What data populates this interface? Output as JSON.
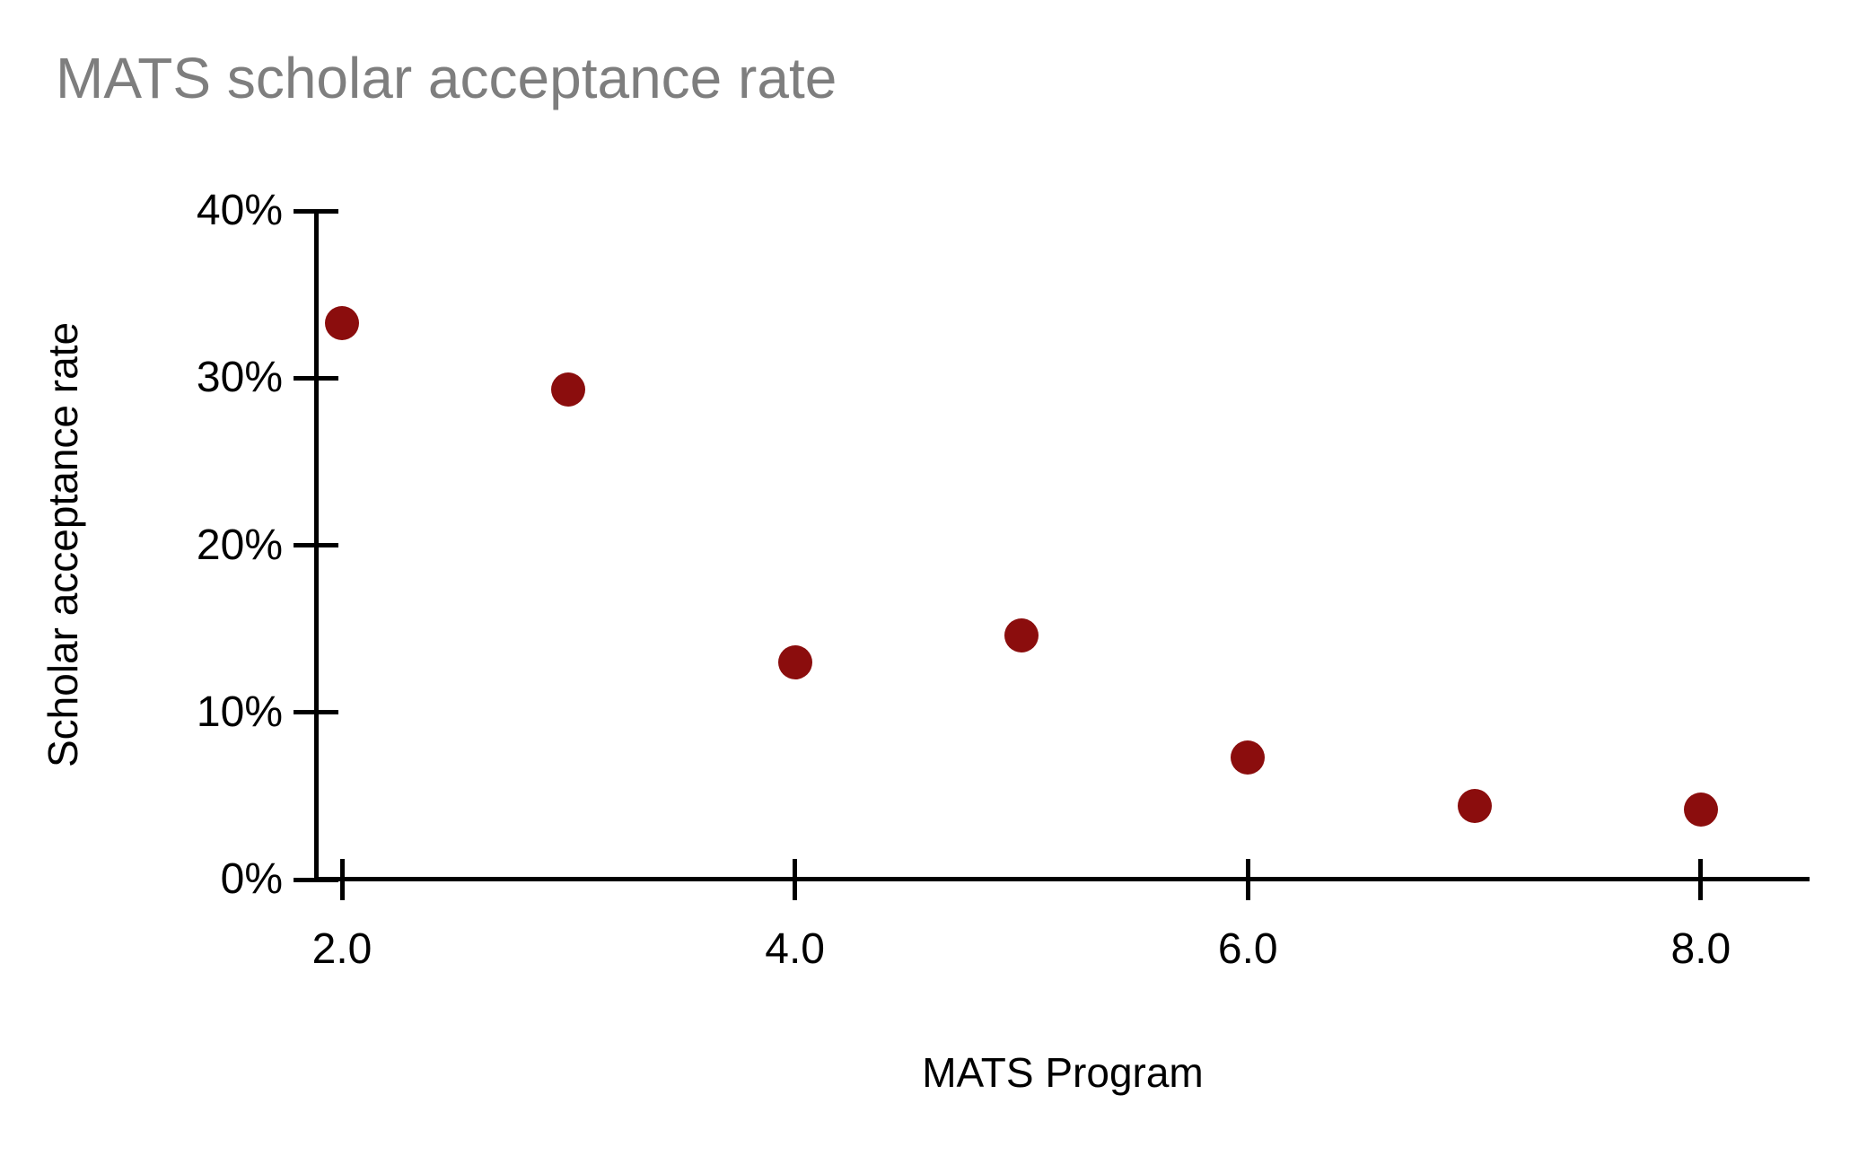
{
  "page": {
    "background_color": "#ffffff"
  },
  "chart_data": {
    "type": "scatter",
    "title": "MATS scholar acceptance rate",
    "xlabel": "MATS Program",
    "ylabel": "Scholar acceptance rate",
    "x": [
      2.0,
      3.0,
      4.0,
      5.0,
      6.0,
      7.0,
      8.0
    ],
    "y_percent": [
      33.3,
      29.3,
      13.0,
      14.6,
      7.3,
      4.4,
      4.2
    ],
    "series": [
      {
        "name": "Scholar acceptance rate",
        "x": [
          2.0,
          3.0,
          4.0,
          5.0,
          6.0,
          7.0,
          8.0
        ],
        "y": [
          33.3,
          29.3,
          13.0,
          14.6,
          7.3,
          4.4,
          4.2
        ]
      }
    ],
    "x_tick_labels": [
      "2.0",
      "4.0",
      "6.0",
      "8.0"
    ],
    "x_tick_values": [
      2.0,
      4.0,
      6.0,
      8.0
    ],
    "y_tick_labels": [
      "0%",
      "10%",
      "20%",
      "30%",
      "40%"
    ],
    "y_tick_values": [
      0,
      10,
      20,
      30,
      40
    ],
    "xlim": [
      1.885,
      8.48
    ],
    "ylim": [
      0,
      40
    ],
    "grid": false,
    "legend": false,
    "marker_color": "#8B0D0D",
    "marker_shape": "circle",
    "title_color": "#7e7e7e",
    "axis_color": "#000000"
  }
}
